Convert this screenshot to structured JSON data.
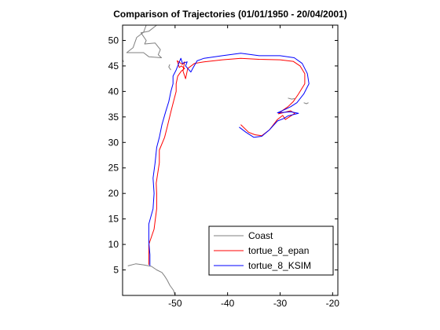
{
  "chart_data": {
    "type": "line",
    "title": "Comparison of Trajectories (01/01/1950 - 20/04/2001)",
    "xlabel": "",
    "ylabel": "",
    "xlim": [
      -60,
      -19
    ],
    "ylim": [
      0,
      53
    ],
    "xticks": [
      -50,
      -40,
      -30,
      -20
    ],
    "yticks": [
      5,
      10,
      15,
      20,
      25,
      30,
      35,
      40,
      45,
      50
    ],
    "grid": false,
    "legend_position": "bottom-right",
    "series": [
      {
        "name": "Coast",
        "color": "#808080",
        "segments": [
          [
            [
              -59,
              5.8
            ],
            [
              -57.5,
              6.2
            ],
            [
              -56,
              6.0
            ],
            [
              -54.5,
              5.7
            ],
            [
              -53.5,
              5.0
            ],
            [
              -52.5,
              4.5
            ],
            [
              -52,
              3.8
            ],
            [
              -51.5,
              3.0
            ],
            [
              -51,
              2.0
            ],
            [
              -50.3,
              1.0
            ],
            [
              -50,
              0
            ]
          ],
          [
            [
              -53.5,
              53
            ],
            [
              -55,
              51.8
            ],
            [
              -56.5,
              51.5
            ],
            [
              -55.5,
              50
            ],
            [
              -55.8,
              49.3
            ],
            [
              -53.8,
              49.5
            ],
            [
              -52.8,
              48.2
            ],
            [
              -53.2,
              47.2
            ],
            [
              -52.6,
              46.6
            ],
            [
              -55,
              46.8
            ],
            [
              -56,
              47.6
            ],
            [
              -59.2,
              47.6
            ],
            [
              -58,
              48.6
            ],
            [
              -57.3,
              50.6
            ],
            [
              -56,
              51.6
            ],
            [
              -55.5,
              53
            ]
          ],
          [
            [
              -61,
              47.2
            ],
            [
              -60,
              46.2
            ],
            [
              -59.8,
              45.8
            ]
          ],
          [
            [
              -51,
              45.3
            ],
            [
              -51.2,
              44.8
            ],
            [
              -50.8,
              44.2
            ]
          ],
          [
            [
              -28.5,
              38.7
            ],
            [
              -27.8,
              38.5
            ],
            [
              -27.2,
              38.6
            ]
          ],
          [
            [
              -25.5,
              37.8
            ],
            [
              -25,
              37.6
            ],
            [
              -24.6,
              37.8
            ]
          ]
        ]
      },
      {
        "name": "tortue_8_epan",
        "color": "#ff0000",
        "points": [
          [
            -55,
            6
          ],
          [
            -55,
            7
          ],
          [
            -55,
            10
          ],
          [
            -54,
            13
          ],
          [
            -53.5,
            17
          ],
          [
            -53.5,
            20
          ],
          [
            -53.6,
            22
          ],
          [
            -53,
            26
          ],
          [
            -53,
            28.5
          ],
          [
            -52,
            31
          ],
          [
            -51.5,
            33
          ],
          [
            -50.8,
            36
          ],
          [
            -50.3,
            38
          ],
          [
            -49.8,
            40
          ],
          [
            -49.8,
            41.5
          ],
          [
            -49.5,
            43
          ],
          [
            -48.8,
            44
          ],
          [
            -48.2,
            44.5
          ],
          [
            -48.8,
            45
          ],
          [
            -49.2,
            44.7
          ],
          [
            -49.6,
            46
          ],
          [
            -48.6,
            45.3
          ],
          [
            -48.2,
            45.8
          ],
          [
            -48.5,
            44
          ],
          [
            -48,
            42.5
          ],
          [
            -47.6,
            44.5
          ],
          [
            -46.3,
            45.5
          ],
          [
            -44.5,
            45.8
          ],
          [
            -41,
            46.2
          ],
          [
            -37.5,
            46.5
          ],
          [
            -34,
            46.3
          ],
          [
            -30,
            46.2
          ],
          [
            -27.5,
            45.9
          ],
          [
            -26.2,
            45
          ],
          [
            -25.3,
            43.5
          ],
          [
            -25.3,
            41.5
          ],
          [
            -26.5,
            39.5
          ],
          [
            -27.5,
            38
          ],
          [
            -28.5,
            37
          ],
          [
            -29.5,
            36.3
          ],
          [
            -30.3,
            35.6
          ],
          [
            -28,
            36.2
          ],
          [
            -27.2,
            35.7
          ],
          [
            -29,
            34.5
          ],
          [
            -29.5,
            35.3
          ],
          [
            -30.5,
            34.5
          ],
          [
            -32,
            32.5
          ],
          [
            -33.5,
            31.3
          ],
          [
            -34.8,
            31.5
          ],
          [
            -36,
            32
          ],
          [
            -37.5,
            33.5
          ]
        ]
      },
      {
        "name": "tortue_8_KSIM",
        "color": "#0000ff",
        "points": [
          [
            -54.8,
            5.8
          ],
          [
            -54.8,
            8
          ],
          [
            -55,
            10.5
          ],
          [
            -55,
            14
          ],
          [
            -54.2,
            17
          ],
          [
            -54,
            20
          ],
          [
            -54.2,
            23
          ],
          [
            -53.8,
            26
          ],
          [
            -53.5,
            29
          ],
          [
            -53,
            31
          ],
          [
            -52.5,
            33.5
          ],
          [
            -51.8,
            36
          ],
          [
            -51.2,
            38
          ],
          [
            -50.8,
            40
          ],
          [
            -50.4,
            41.5
          ],
          [
            -50.4,
            43
          ],
          [
            -49.8,
            44.2
          ],
          [
            -49.3,
            45.5
          ],
          [
            -48.9,
            46.5
          ],
          [
            -48.6,
            45.5
          ],
          [
            -47.7,
            45.8
          ],
          [
            -48,
            45
          ],
          [
            -47,
            43.8
          ],
          [
            -46.6,
            44.6
          ],
          [
            -45.8,
            46
          ],
          [
            -44.5,
            46.5
          ],
          [
            -41,
            47
          ],
          [
            -37.5,
            47.5
          ],
          [
            -34,
            47
          ],
          [
            -30,
            47
          ],
          [
            -27.3,
            46.6
          ],
          [
            -25.8,
            45.5
          ],
          [
            -24.8,
            43.5
          ],
          [
            -24.5,
            41.5
          ],
          [
            -25.5,
            39.5
          ],
          [
            -26.8,
            37.8
          ],
          [
            -28,
            37
          ],
          [
            -29,
            36.5
          ],
          [
            -30.5,
            35.8
          ],
          [
            -28,
            36
          ],
          [
            -26.5,
            35.7
          ],
          [
            -28.5,
            35.2
          ],
          [
            -29.3,
            34.7
          ],
          [
            -30.5,
            34.2
          ],
          [
            -32,
            32.5
          ],
          [
            -33.5,
            31.2
          ],
          [
            -35,
            31
          ],
          [
            -36.5,
            32
          ],
          [
            -37.8,
            33
          ]
        ]
      }
    ]
  }
}
